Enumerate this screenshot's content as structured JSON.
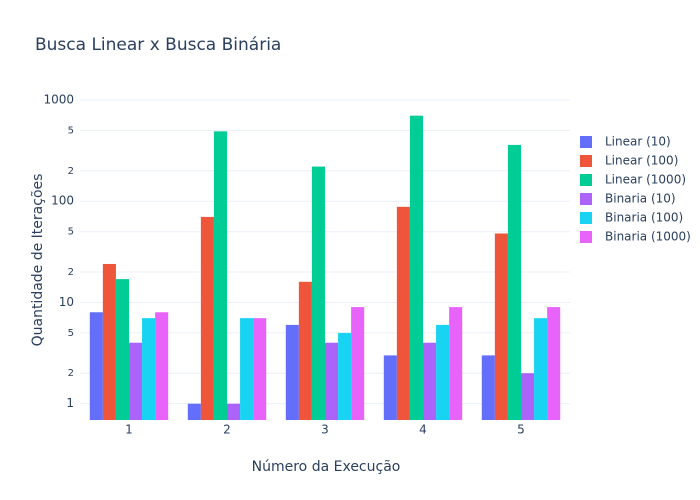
{
  "chart_data": {
    "type": "bar",
    "title": "Busca Linear x Busca Binária",
    "x_label": "Número da Execução",
    "y_label": "Quantidade de Iterações",
    "categories": [
      "1",
      "2",
      "3",
      "4",
      "5"
    ],
    "series": [
      {
        "name": "Linear (10)",
        "color": "#636efa",
        "values": [
          8,
          1,
          6,
          3,
          3
        ]
      },
      {
        "name": "Linear (100)",
        "color": "#ef553b",
        "values": [
          24,
          70,
          16,
          88,
          48
        ]
      },
      {
        "name": "Linear (1000)",
        "color": "#00cc96",
        "values": [
          17,
          490,
          220,
          700,
          360
        ]
      },
      {
        "name": "Binaria (10)",
        "color": "#ab63fa",
        "values": [
          4,
          1,
          4,
          4,
          2
        ]
      },
      {
        "name": "Binaria (100)",
        "color": "#19d3f3",
        "values": [
          7,
          7,
          5,
          6,
          7
        ]
      },
      {
        "name": "Binaria (1000)",
        "color": "#e763fa",
        "values": [
          8,
          7,
          9,
          9,
          9
        ]
      }
    ],
    "log_y": true,
    "ylim": [
      0.69,
      1000
    ],
    "yticks": [
      1,
      2,
      5,
      10,
      {
        "value": 20,
        "label": "2"
      },
      {
        "value": 50,
        "label": "5"
      },
      100,
      {
        "value": 200,
        "label": "2"
      },
      {
        "value": 500,
        "label": "5"
      },
      1000
    ],
    "grid": true,
    "legend": "right"
  }
}
